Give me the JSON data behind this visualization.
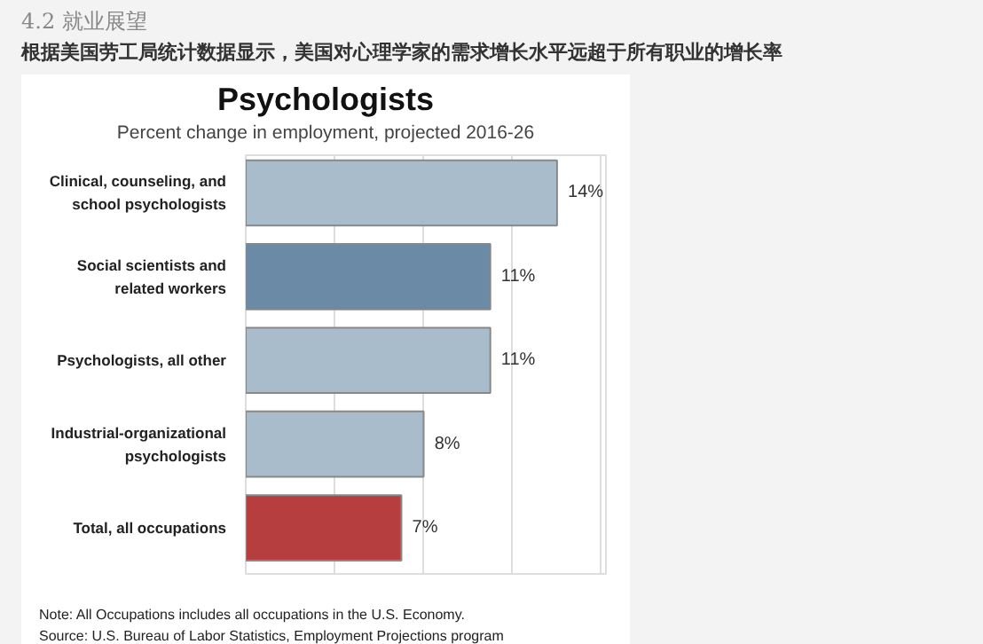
{
  "chart_data": {
    "type": "bar",
    "orientation": "horizontal",
    "title": "Psychologists",
    "subtitle": "Percent change in employment, projected 2016-26",
    "categories": [
      "Clinical, counseling, and school psychologists",
      "Social scientists and related workers",
      "Psychologists, all other",
      "Industrial-organizational psychologists",
      "Total, all occupations"
    ],
    "values": [
      14,
      11,
      11,
      8,
      7
    ],
    "colors": [
      "#a9bccb",
      "#6b8aa5",
      "#a9bccb",
      "#a9bccb",
      "#b63e3e"
    ],
    "value_labels": [
      "14%",
      "11%",
      "11%",
      "8%",
      "7%"
    ],
    "xlim": [
      0,
      16.2
    ],
    "xticks": [
      {
        "value": 0,
        "label": null
      },
      {
        "value": 4,
        "label": null
      },
      {
        "value": 8,
        "label": null
      },
      {
        "value": 12,
        "label": null
      },
      {
        "value": 16,
        "label": null
      }
    ],
    "grid": "x",
    "tick_labels": "y",
    "annotations": [
      "4.2 就业展望",
      "根据美国劳工局统计数据显示，美国对心理学家的需求增长水平远超于所有职业的增长率",
      "Note: All Occupations includes all occupations in the U.S. Economy.",
      "Source: U.S. Bureau of Labor Statistics, Employment Projections program"
    ]
  }
}
